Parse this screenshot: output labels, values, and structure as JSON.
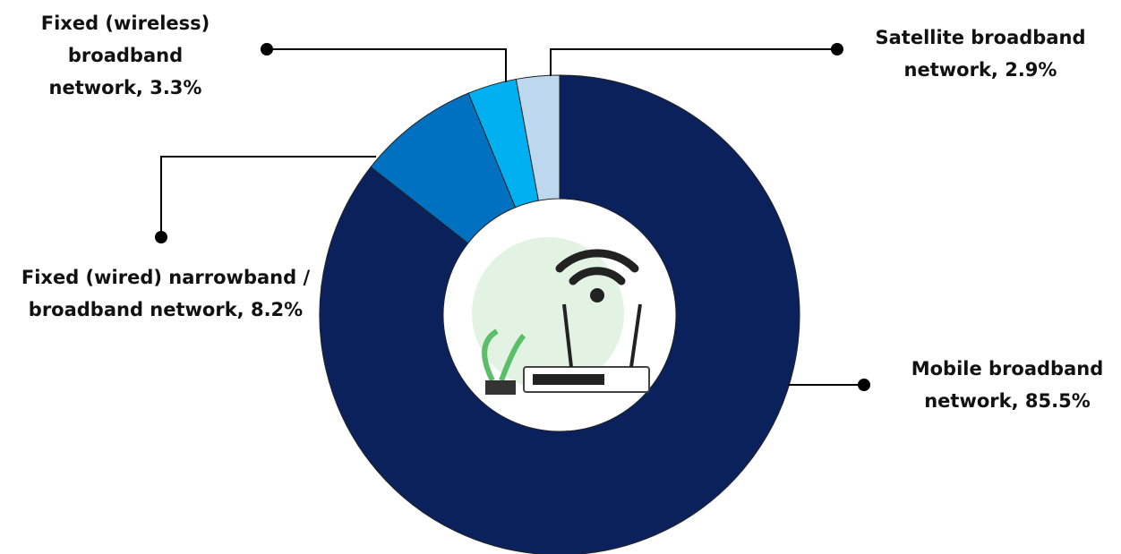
{
  "chart_data": {
    "type": "pie",
    "donut": true,
    "categories": [
      "Mobile broadband network,",
      "Fixed (wired) narrowband / broadband network,",
      "Fixed (wireless) broadband network,",
      "Satellite broadband network,"
    ],
    "values": [
      85.5,
      8.2,
      3.3,
      2.9
    ],
    "value_labels": [
      "85.5%",
      "8.2%",
      "3.3%",
      "2.9%"
    ],
    "colors": [
      "#0a215c",
      "#0070c0",
      "#00b0f0",
      "#bdd7ee"
    ]
  }
}
